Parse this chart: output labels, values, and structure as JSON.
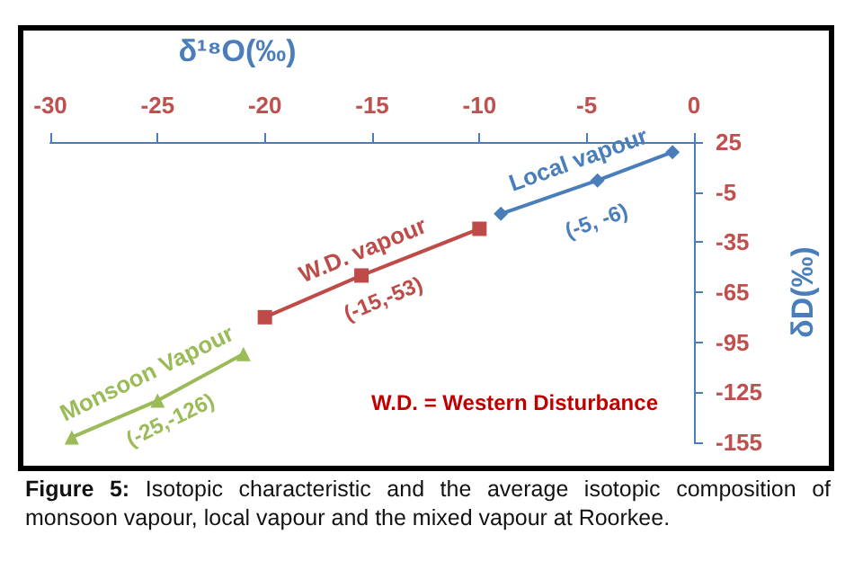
{
  "chart_data": {
    "type": "line",
    "xlabel": "δ¹⁸O(‰)",
    "ylabel": "δD(‰)",
    "xlim": [
      -30,
      0
    ],
    "xticks": [
      -30,
      -25,
      -20,
      -15,
      -10,
      -5,
      0
    ],
    "ylim": [
      -155,
      25
    ],
    "yticks": [
      25,
      -5,
      -35,
      -65,
      -95,
      -125,
      -155
    ],
    "grid": false,
    "legend": false,
    "series": [
      {
        "name": "Local vapour",
        "color": "#4a7ebb",
        "marker": "diamond",
        "x": [
          -9,
          -4.5,
          -1
        ],
        "values": [
          -18,
          2,
          19
        ]
      },
      {
        "name": "W.D. vapour",
        "color": "#be4b48",
        "marker": "square",
        "x": [
          -20,
          -15.5,
          -10
        ],
        "values": [
          -80,
          -55,
          -27
        ]
      },
      {
        "name": "Monsoon Vapour",
        "color": "#9bbb59",
        "marker": "triangle",
        "x": [
          -29,
          -25,
          -21
        ],
        "values": [
          -152,
          -130,
          -102
        ]
      }
    ],
    "annotations": [
      {
        "text": "(-5, -6)",
        "x": -5,
        "y": -6
      },
      {
        "text": "(-15,-53)",
        "x": -15,
        "y": -53
      },
      {
        "text": "(-25,-126)",
        "x": -25,
        "y": -126
      },
      "W.D. = Western Disturbance",
      "Figure 5: Isotopic characteristic and the average isotopic composition of monsoon vapour, local vapour and the mixed vapour at Roorkee."
    ]
  }
}
